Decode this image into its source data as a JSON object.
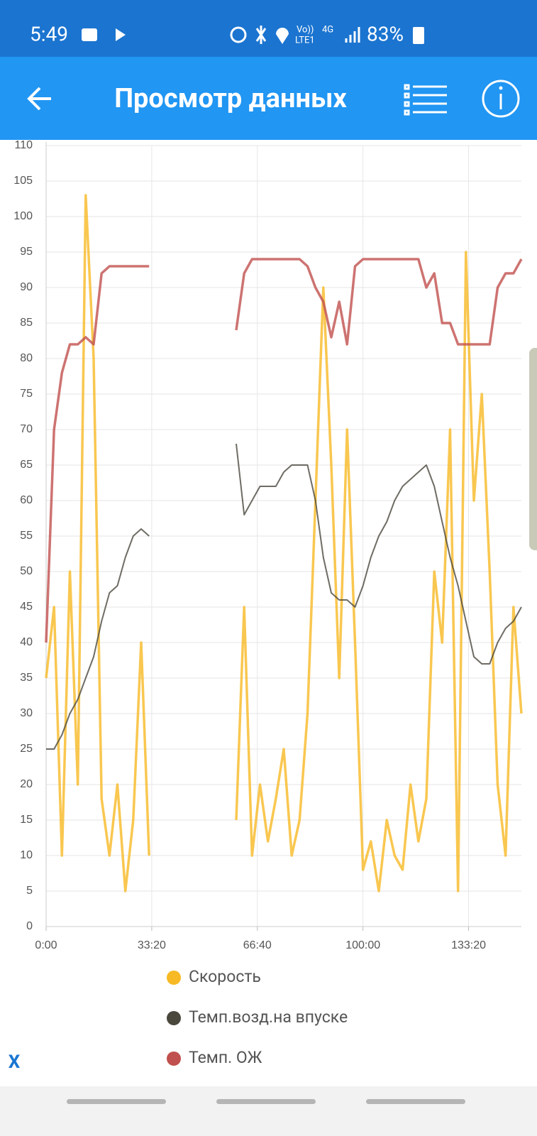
{
  "status_bar": {
    "time": "5:49",
    "network": [
      "Vo))",
      "LTE1",
      "4G"
    ],
    "battery": "83%"
  },
  "app_bar": {
    "title": "Просмотр данных"
  },
  "chart_data": {
    "type": "line",
    "x": [
      0,
      150,
      300,
      450,
      600,
      750,
      900,
      1050,
      1200,
      1350,
      1500,
      1650,
      1800,
      1950,
      2100,
      2250,
      2400,
      2550,
      2700,
      2850,
      3000,
      3150,
      3300,
      3450,
      3600,
      3750,
      3900,
      4050,
      4200,
      4350,
      4500,
      4650,
      4800,
      4950,
      5100,
      5250,
      5400,
      5550,
      5700,
      5850,
      6000,
      6150,
      6300,
      6450,
      6600,
      6750,
      6900,
      7050,
      7200,
      7350,
      7500,
      7650,
      7800,
      7950,
      8100,
      8250,
      8400,
      8550,
      8700,
      8850,
      9000
    ],
    "series": [
      {
        "name": "Скорость",
        "color": "#f7b924",
        "values": [
          35,
          45,
          10,
          50,
          20,
          103,
          80,
          18,
          10,
          20,
          5,
          15,
          40,
          10,
          null,
          null,
          null,
          null,
          null,
          null,
          null,
          null,
          null,
          null,
          15,
          45,
          10,
          20,
          12,
          18,
          25,
          10,
          15,
          30,
          60,
          90,
          65,
          35,
          70,
          40,
          8,
          12,
          5,
          15,
          10,
          8,
          20,
          12,
          18,
          50,
          40,
          70,
          5,
          95,
          60,
          75,
          50,
          20,
          10,
          45,
          30
        ]
      },
      {
        "name": "Темп.возд.на впуске",
        "color": "#4a473d",
        "values": [
          25,
          25,
          27,
          30,
          32,
          35,
          38,
          43,
          47,
          48,
          52,
          55,
          56,
          55,
          null,
          null,
          null,
          null,
          null,
          null,
          null,
          null,
          null,
          null,
          68,
          58,
          60,
          62,
          62,
          62,
          64,
          65,
          65,
          65,
          60,
          52,
          47,
          46,
          46,
          45,
          48,
          52,
          55,
          57,
          60,
          62,
          63,
          64,
          65,
          62,
          57,
          52,
          48,
          43,
          38,
          37,
          37,
          40,
          42,
          43,
          45
        ]
      },
      {
        "name": "Темп. ОЖ",
        "color": "#c0504d",
        "values": [
          40,
          70,
          78,
          82,
          82,
          83,
          82,
          92,
          93,
          93,
          93,
          93,
          93,
          93,
          null,
          null,
          null,
          null,
          null,
          null,
          null,
          null,
          null,
          null,
          84,
          92,
          94,
          94,
          94,
          94,
          94,
          94,
          94,
          93,
          90,
          88,
          83,
          88,
          82,
          93,
          94,
          94,
          94,
          94,
          94,
          94,
          94,
          94,
          90,
          92,
          85,
          85,
          82,
          82,
          82,
          82,
          82,
          90,
          92,
          92,
          94
        ]
      }
    ],
    "xlim": [
      0,
      9000
    ],
    "xticks": [
      {
        "value": 0,
        "label": "0:00"
      },
      {
        "value": 2000,
        "label": "33:20"
      },
      {
        "value": 4000,
        "label": "66:40"
      },
      {
        "value": 6000,
        "label": "100:00"
      },
      {
        "value": 8000,
        "label": "133:20"
      }
    ],
    "ylim": [
      0,
      110
    ],
    "yticks": [
      0,
      5,
      10,
      15,
      20,
      25,
      30,
      35,
      40,
      45,
      50,
      55,
      60,
      65,
      70,
      75,
      80,
      85,
      90,
      95,
      100,
      105,
      110
    ],
    "grid": true
  },
  "close_button": "X"
}
